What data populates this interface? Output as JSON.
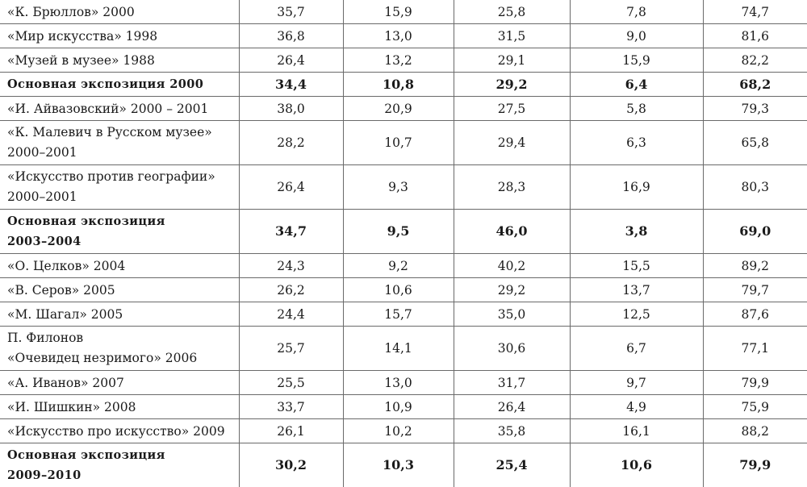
{
  "rows": [
    {
      "name": [
        "«К. Брюллов» 2000"
      ],
      "values": [
        "35,7",
        "15,9",
        "25,8",
        "7,8",
        "74,7"
      ],
      "bold": false
    },
    {
      "name": [
        "«Мир искусства» 1998"
      ],
      "values": [
        "36,8",
        "13,0",
        "31,5",
        "9,0",
        "81,6"
      ],
      "bold": false
    },
    {
      "name": [
        "«Музей в музее» 1988"
      ],
      "values": [
        "26,4",
        "13,2",
        "29,1",
        "15,9",
        "82,2"
      ],
      "bold": false
    },
    {
      "name": [
        "Основная экспозиция 2000"
      ],
      "values": [
        "34,4",
        "10,8",
        "29,2",
        "6,4",
        "68,2"
      ],
      "bold": true
    },
    {
      "name": [
        "«И. Айвазовский» 2000 – 2001"
      ],
      "values": [
        "38,0",
        "20,9",
        "27,5",
        "5,8",
        "79,3"
      ],
      "bold": false
    },
    {
      "name": [
        "«К. Малевич в Русском музее»",
        "2000–2001"
      ],
      "values": [
        "28,2",
        "10,7",
        "29,4",
        "6,3",
        "65,8"
      ],
      "bold": false
    },
    {
      "name": [
        "«Искусство против географии»",
        "2000–2001"
      ],
      "values": [
        "26,4",
        "9,3",
        "28,3",
        "16,9",
        "80,3"
      ],
      "bold": false
    },
    {
      "name": [
        "Основная экспозиция",
        "2003–2004"
      ],
      "values": [
        "34,7",
        "9,5",
        "46,0",
        "3,8",
        "69,0"
      ],
      "bold": true
    },
    {
      "name": [
        "«О. Целков» 2004"
      ],
      "values": [
        "24,3",
        "9,2",
        "40,2",
        "15,5",
        "89,2"
      ],
      "bold": false
    },
    {
      "name": [
        "«В. Серов» 2005"
      ],
      "values": [
        "26,2",
        "10,6",
        "29,2",
        "13,7",
        "79,7"
      ],
      "bold": false
    },
    {
      "name": [
        "«М. Шагал» 2005"
      ],
      "values": [
        "24,4",
        "15,7",
        "35,0",
        "12,5",
        "87,6"
      ],
      "bold": false
    },
    {
      "name": [
        "П. Филонов",
        "«Очевидец незримого» 2006"
      ],
      "values": [
        "25,7",
        "14,1",
        "30,6",
        "6,7",
        "77,1"
      ],
      "bold": false
    },
    {
      "name": [
        "«А. Иванов» 2007"
      ],
      "values": [
        "25,5",
        "13,0",
        "31,7",
        "9,7",
        "79,9"
      ],
      "bold": false
    },
    {
      "name": [
        "«И. Шишкин» 2008"
      ],
      "values": [
        "33,7",
        "10,9",
        "26,4",
        "4,9",
        "75,9"
      ],
      "bold": false
    },
    {
      "name": [
        "«Искусство про искусство» 2009"
      ],
      "values": [
        "26,1",
        "10,2",
        "35,8",
        "16,1",
        "88,2"
      ],
      "bold": false
    },
    {
      "name": [
        "Основная экспозиция",
        "2009–2010"
      ],
      "values": [
        "30,2",
        "10,3",
        "25,4",
        "10,6",
        "79,9"
      ],
      "bold": true
    }
  ]
}
